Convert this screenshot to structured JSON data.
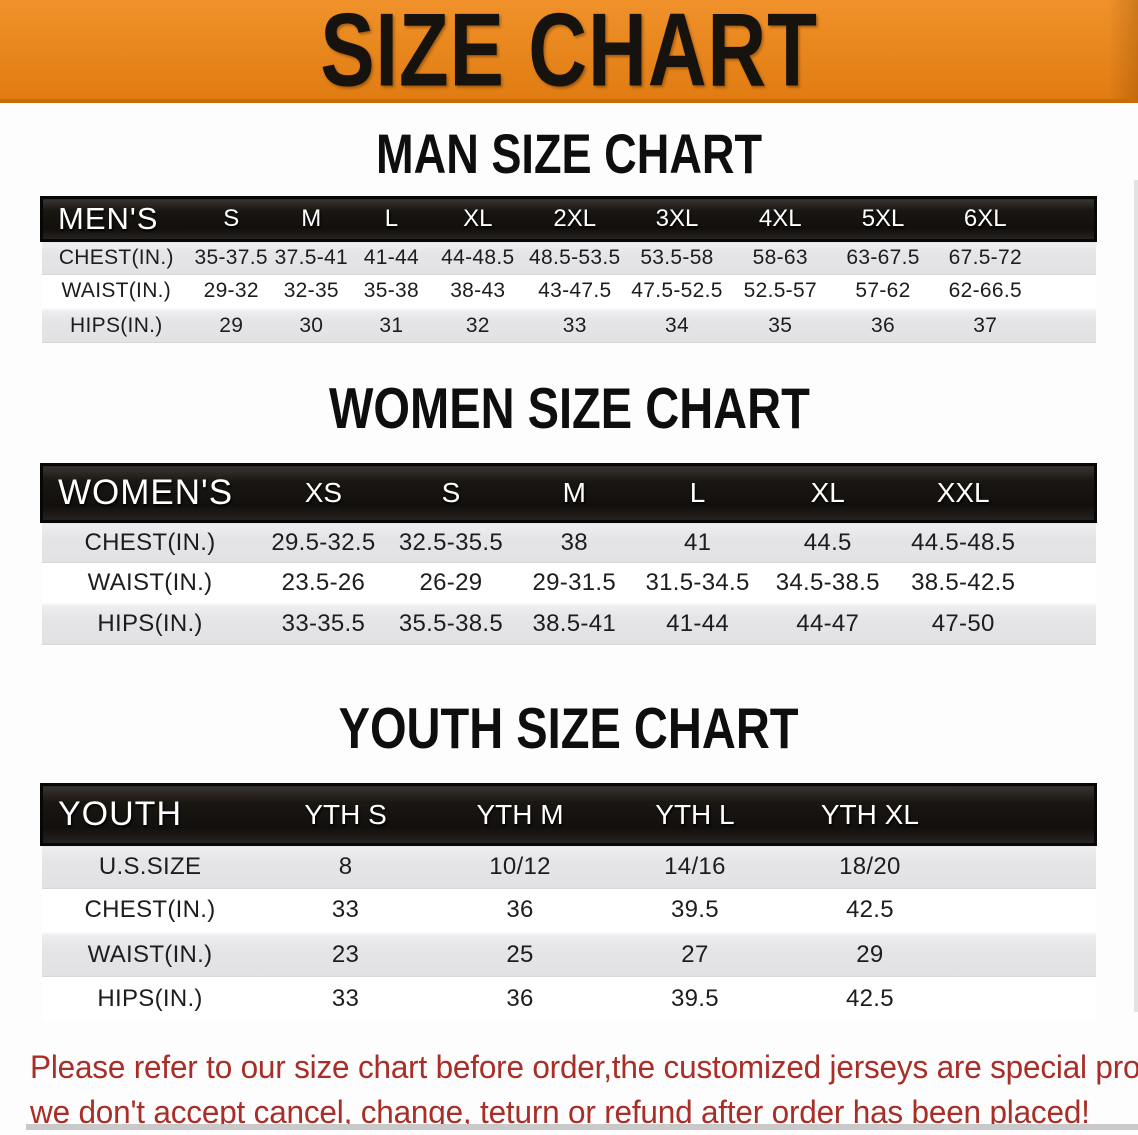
{
  "banner": {
    "title": "SIZE CHART"
  },
  "colors": {
    "banner_orange": "#e9881f",
    "banner_border": "#c66d08",
    "header_black": "#15110e",
    "stripe_gray": "#e5e5e7",
    "disclaimer_red": "#a82e27"
  },
  "sections": [
    {
      "title": "MAN SIZE CHART",
      "corner": "MEN'S",
      "columns": [
        "S",
        "M",
        "L",
        "XL",
        "2XL",
        "3XL",
        "4XL",
        "5XL",
        "6XL"
      ],
      "rows": [
        {
          "label": "CHEST(IN.)",
          "values": [
            "35-37.5",
            "37.5-41",
            "41-44",
            "44-48.5",
            "48.5-53.5",
            "53.5-58",
            "58-63",
            "63-67.5",
            "67.5-72"
          ]
        },
        {
          "label": "WAIST(IN.)",
          "values": [
            "29-32",
            "32-35",
            "35-38",
            "38-43",
            "43-47.5",
            "47.5-52.5",
            "52.5-57",
            "57-62",
            "62-66.5"
          ]
        },
        {
          "label": "HIPS(IN.)",
          "values": [
            "29",
            "30",
            "31",
            "32",
            "33",
            "34",
            "35",
            "36",
            "37"
          ]
        }
      ]
    },
    {
      "title": "WOMEN SIZE CHART",
      "corner": "WOMEN'S",
      "columns": [
        "XS",
        "S",
        "M",
        "L",
        "XL",
        "XXL"
      ],
      "rows": [
        {
          "label": "CHEST(IN.)",
          "values": [
            "29.5-32.5",
            "32.5-35.5",
            "38",
            "41",
            "44.5",
            "44.5-48.5"
          ]
        },
        {
          "label": "WAIST(IN.)",
          "values": [
            "23.5-26",
            "26-29",
            "29-31.5",
            "31.5-34.5",
            "34.5-38.5",
            "38.5-42.5"
          ]
        },
        {
          "label": "HIPS(IN.)",
          "values": [
            "33-35.5",
            "35.5-38.5",
            "38.5-41",
            "41-44",
            "44-47",
            "47-50"
          ]
        }
      ]
    },
    {
      "title": "YOUTH SIZE CHART",
      "corner": "YOUTH",
      "columns": [
        "YTH S",
        "YTH M",
        "YTH L",
        "YTH XL"
      ],
      "rows": [
        {
          "label": "U.S.SIZE",
          "values": [
            "8",
            "10/12",
            "14/16",
            "18/20"
          ]
        },
        {
          "label": "CHEST(IN.)",
          "values": [
            "33",
            "36",
            "39.5",
            "42.5"
          ]
        },
        {
          "label": "WAIST(IN.)",
          "values": [
            "23",
            "25",
            "27",
            "29"
          ]
        },
        {
          "label": "HIPS(IN.)",
          "values": [
            "33",
            "36",
            "39.5",
            "42.5"
          ]
        }
      ]
    }
  ],
  "disclaimer": {
    "line1": "Please refer to our size chart before order,the customized jerseys are special products,",
    "line2": "we don't accept cancel, change, teturn or refund after order has been placed!"
  }
}
